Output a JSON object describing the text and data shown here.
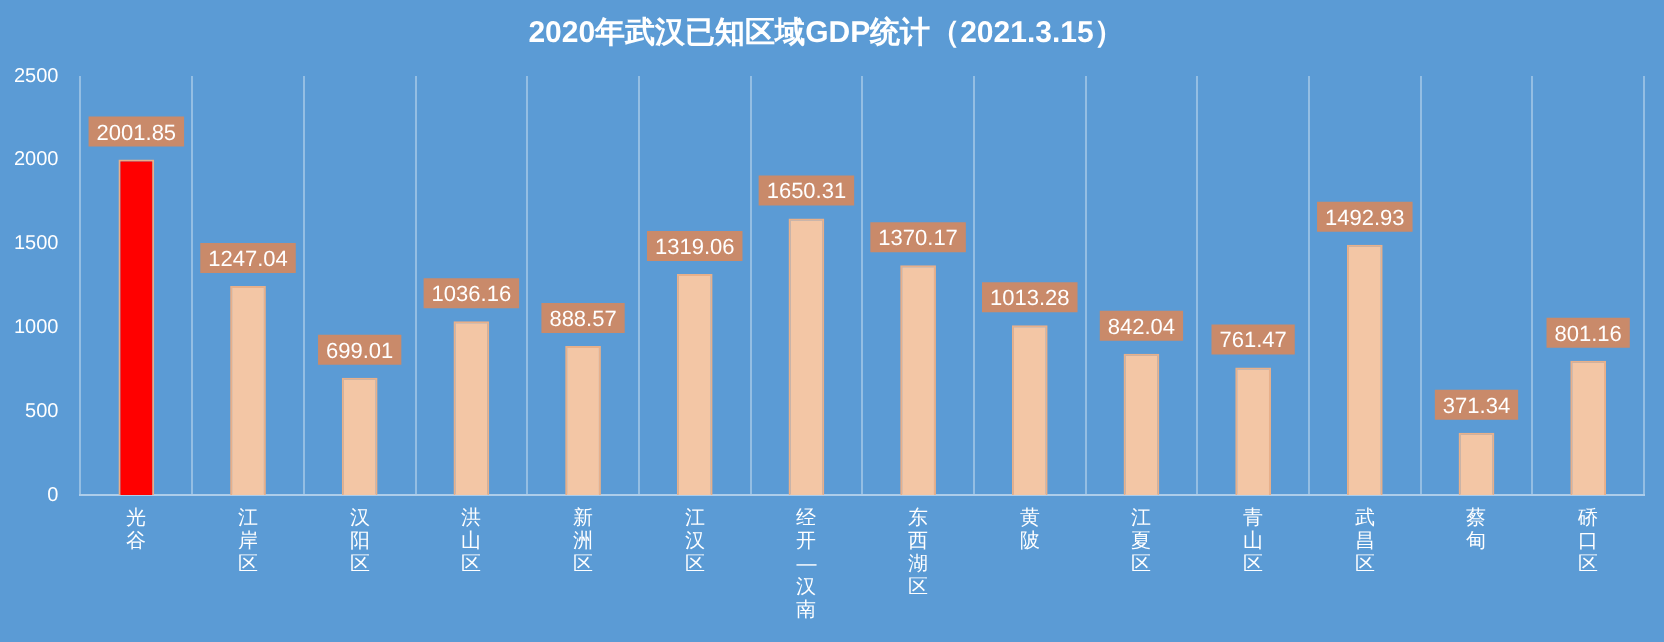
{
  "chart_data": {
    "type": "bar",
    "title": "2020年武汉已知区域GDP统计（2021.3.15）",
    "categories": [
      "光谷",
      "江岸区",
      "汉阳区",
      "洪山区",
      "新洲区",
      "江汉区",
      "经开—汉南",
      "东西湖区",
      "黄陂",
      "江夏区",
      "青山区",
      "武昌区",
      "蔡甸",
      "硚口区"
    ],
    "values": [
      2001.85,
      1247.04,
      699.01,
      1036.16,
      888.57,
      1319.06,
      1650.31,
      1370.17,
      1013.28,
      842.04,
      761.47,
      1492.93,
      371.34,
      801.16
    ],
    "colors": [
      "#ff0000",
      "#f3c6a5",
      "#f3c6a5",
      "#f3c6a5",
      "#f3c6a5",
      "#f3c6a5",
      "#f3c6a5",
      "#f3c6a5",
      "#f3c6a5",
      "#f3c6a5",
      "#f3c6a5",
      "#f3c6a5",
      "#f3c6a5",
      "#f3c6a5"
    ],
    "ylim": [
      0,
      2500
    ],
    "yticks": [
      0,
      500,
      1000,
      1500,
      2000,
      2500
    ],
    "grid": "x",
    "data_labels": true
  }
}
